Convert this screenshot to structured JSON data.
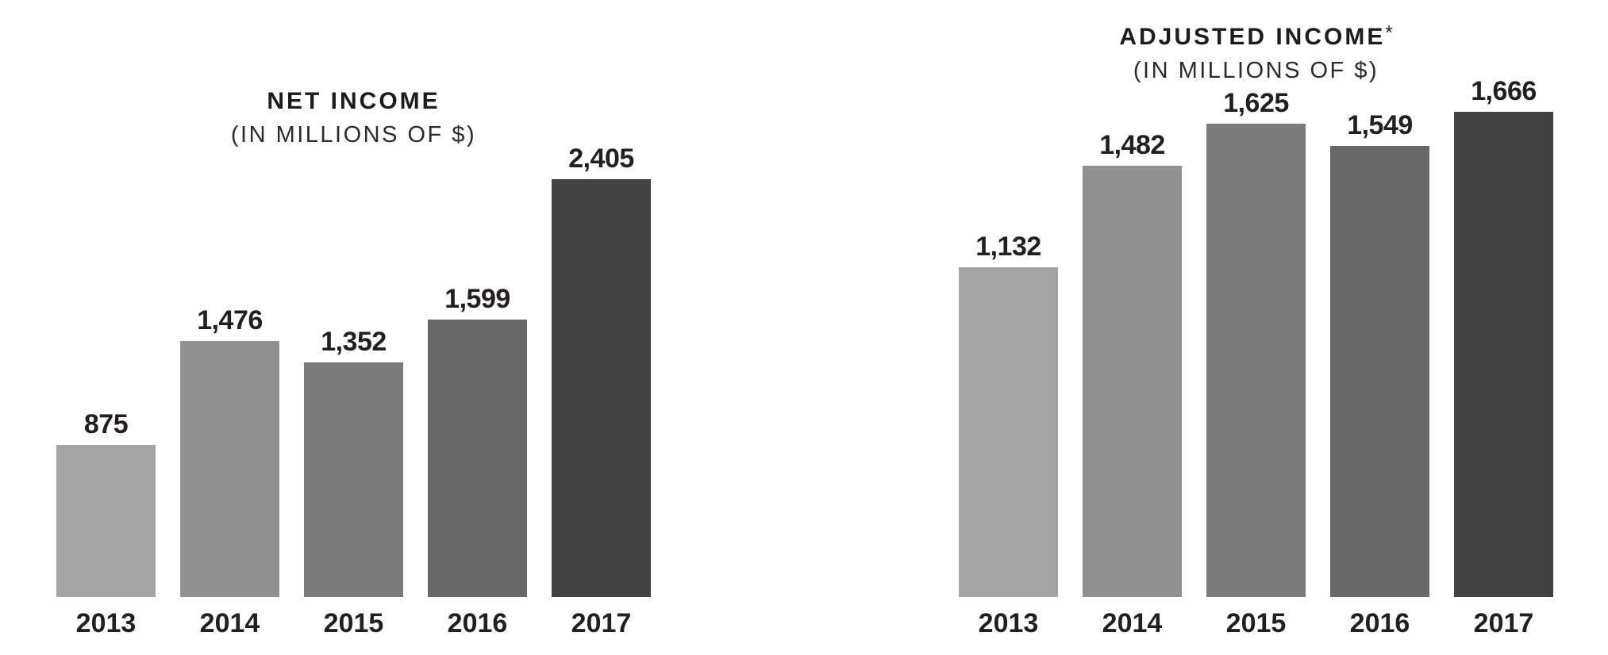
{
  "figure": {
    "background": "#ffffff",
    "text_color": "#231f20"
  },
  "chart_data": [
    {
      "type": "bar",
      "title": "NET INCOME",
      "title_note": "",
      "subtitle": "(IN MILLIONS OF $)",
      "categories": [
        "2013",
        "2014",
        "2015",
        "2016",
        "2017"
      ],
      "values": [
        875,
        1476,
        1352,
        1599,
        2405
      ],
      "value_labels": [
        "875",
        "1,476",
        "1,352",
        "1,599",
        "2,405"
      ],
      "bar_colors": [
        "#a4a4a4",
        "#919191",
        "#7b7b7b",
        "#676767",
        "#424242"
      ],
      "xlabel": "",
      "ylabel": "",
      "ylim": [
        0,
        2405
      ],
      "grid": false,
      "legend": false,
      "value_labels_position": "above-bars"
    },
    {
      "type": "bar",
      "title": "ADJUSTED INCOME",
      "title_note": "*",
      "subtitle": "(IN MILLIONS OF $)",
      "categories": [
        "2013",
        "2014",
        "2015",
        "2016",
        "2017"
      ],
      "values": [
        1132,
        1482,
        1625,
        1549,
        1666
      ],
      "value_labels": [
        "1,132",
        "1,482",
        "1,625",
        "1,549",
        "1,666"
      ],
      "bar_colors": [
        "#a4a4a4",
        "#919191",
        "#7b7b7b",
        "#676767",
        "#424242"
      ],
      "xlabel": "",
      "ylabel": "",
      "ylim": [
        0,
        1666
      ],
      "grid": false,
      "legend": false,
      "value_labels_position": "above-bars"
    }
  ]
}
